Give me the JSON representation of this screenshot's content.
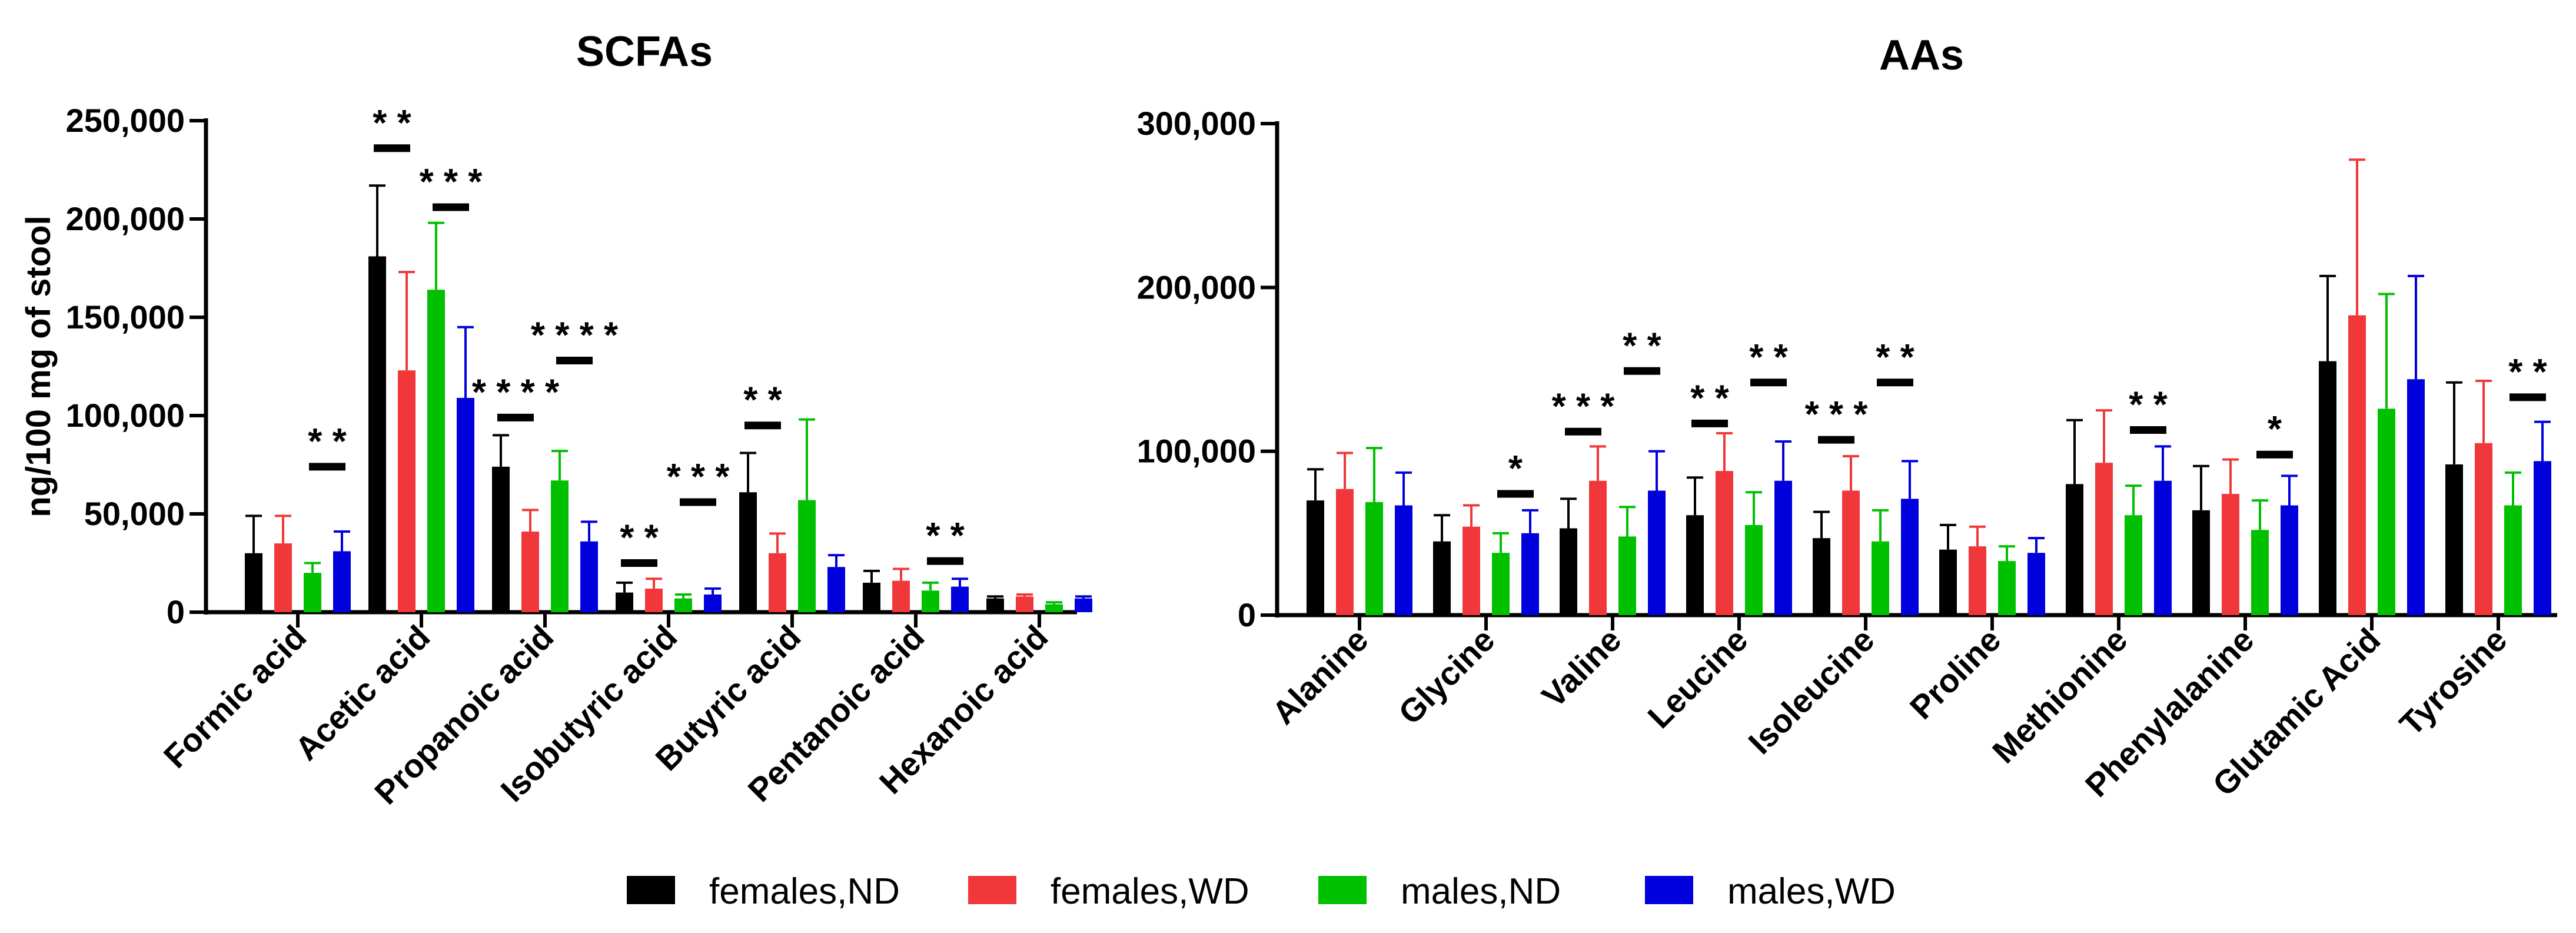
{
  "legend": {
    "entries": [
      {
        "label": "females,ND",
        "color": "#000000"
      },
      {
        "label": "females,WD",
        "color": "#f0383a"
      },
      {
        "label": "males,ND",
        "color": "#00c000"
      },
      {
        "label": "males,WD",
        "color": "#0000dd"
      }
    ]
  },
  "chart_data": [
    {
      "type": "bar",
      "title": "SCFAs",
      "ylabel": "ng/100 mg of stool",
      "xlabel": "",
      "ylim": [
        0,
        250000
      ],
      "yticks": [
        0,
        50000,
        100000,
        150000,
        200000,
        250000
      ],
      "ytick_labels": [
        "0",
        "50,000",
        "100,000",
        "150,000",
        "200,000",
        "250,000"
      ],
      "categories": [
        "Formic acid",
        "Acetic acid",
        "Propanoic acid",
        "Isobutyric acid",
        "Butyric acid",
        "Pentanoic acid",
        "Hexanoic acid"
      ],
      "series": [
        {
          "name": "females,ND",
          "color": "#000000",
          "values": [
            30000,
            181000,
            74000,
            10000,
            61000,
            15000,
            7000
          ],
          "errors": [
            19000,
            36000,
            16000,
            5000,
            20000,
            6000,
            1000
          ]
        },
        {
          "name": "females,WD",
          "color": "#f0383a",
          "values": [
            35000,
            123000,
            41000,
            12000,
            30000,
            16000,
            8000
          ],
          "errors": [
            14000,
            50000,
            11000,
            5000,
            10000,
            6000,
            1000
          ]
        },
        {
          "name": "males,ND",
          "color": "#00c000",
          "values": [
            20000,
            164000,
            67000,
            7000,
            57000,
            11000,
            4000
          ],
          "errors": [
            5000,
            34000,
            15000,
            2000,
            41000,
            4000,
            1000
          ]
        },
        {
          "name": "males,WD",
          "color": "#0000dd",
          "values": [
            31000,
            109000,
            36000,
            9000,
            23000,
            13000,
            7000
          ],
          "errors": [
            10000,
            36000,
            10000,
            3000,
            6000,
            4000,
            1000
          ]
        }
      ],
      "significance": [
        {
          "category": "Formic acid",
          "pair": [
            2,
            3
          ],
          "label": "* *",
          "value": 74000
        },
        {
          "category": "Acetic acid",
          "pair": [
            0,
            1
          ],
          "label": "* *",
          "value": 236000
        },
        {
          "category": "Acetic acid",
          "pair": [
            2,
            3
          ],
          "label": "* * *",
          "value": 206000
        },
        {
          "category": "Propanoic acid",
          "pair": [
            0,
            1
          ],
          "label": "* * * *",
          "value": 99000
        },
        {
          "category": "Propanoic acid",
          "pair": [
            2,
            3
          ],
          "label": "* * * *",
          "value": 128000
        },
        {
          "category": "Isobutyric acid",
          "pair": [
            0,
            1
          ],
          "label": "* *",
          "value": 25000
        },
        {
          "category": "Isobutyric acid",
          "pair": [
            2,
            3
          ],
          "label": "* * *",
          "value": 56000
        },
        {
          "category": "Butyric acid",
          "pair": [
            0,
            1
          ],
          "label": "* *",
          "value": 95000
        },
        {
          "category": "Pentanoic acid",
          "pair": [
            2,
            3
          ],
          "label": "* *",
          "value": 26000
        }
      ]
    },
    {
      "type": "bar",
      "title": "AAs",
      "ylabel": "",
      "xlabel": "",
      "ylim": [
        0,
        300000
      ],
      "yticks": [
        0,
        100000,
        200000,
        300000
      ],
      "ytick_labels": [
        "0",
        "100,000",
        "200,000",
        "300,000"
      ],
      "categories": [
        "Alanine",
        "Glycine",
        "Valine",
        "Leucine",
        "Isoleucine",
        "Proline",
        "Methionine",
        "Phenylalanine",
        "Glutamic Acid",
        "Tyrosine"
      ],
      "series": [
        {
          "name": "females,ND",
          "color": "#000000",
          "values": [
            70000,
            45000,
            53000,
            61000,
            47000,
            40000,
            80000,
            64000,
            155000,
            92000
          ],
          "errors": [
            19000,
            16000,
            18000,
            23000,
            16000,
            15000,
            39000,
            27000,
            52000,
            50000
          ]
        },
        {
          "name": "females,WD",
          "color": "#f0383a",
          "values": [
            77000,
            54000,
            82000,
            88000,
            76000,
            42000,
            93000,
            74000,
            183000,
            105000
          ],
          "errors": [
            22000,
            13000,
            21000,
            23000,
            21000,
            12000,
            32000,
            21000,
            95000,
            38000
          ]
        },
        {
          "name": "males,ND",
          "color": "#00c000",
          "values": [
            69000,
            38000,
            48000,
            55000,
            45000,
            33000,
            61000,
            52000,
            126000,
            67000
          ],
          "errors": [
            33000,
            12000,
            18000,
            20000,
            19000,
            9000,
            18000,
            18000,
            70000,
            20000
          ]
        },
        {
          "name": "males,WD",
          "color": "#0000dd",
          "values": [
            67000,
            50000,
            76000,
            82000,
            71000,
            38000,
            82000,
            67000,
            144000,
            94000
          ],
          "errors": [
            20000,
            14000,
            24000,
            24000,
            23000,
            9000,
            21000,
            18000,
            63000,
            24000
          ]
        }
      ],
      "significance": [
        {
          "category": "Glycine",
          "pair": [
            2,
            3
          ],
          "label": "*",
          "value": 74000
        },
        {
          "category": "Valine",
          "pair": [
            0,
            1
          ],
          "label": "* * *",
          "value": 112000
        },
        {
          "category": "Valine",
          "pair": [
            2,
            3
          ],
          "label": "* *",
          "value": 149000
        },
        {
          "category": "Leucine",
          "pair": [
            0,
            1
          ],
          "label": "* *",
          "value": 117000
        },
        {
          "category": "Leucine",
          "pair": [
            2,
            3
          ],
          "label": "* *",
          "value": 142000
        },
        {
          "category": "Isoleucine",
          "pair": [
            0,
            1
          ],
          "label": "* * *",
          "value": 107000
        },
        {
          "category": "Isoleucine",
          "pair": [
            2,
            3
          ],
          "label": "* *",
          "value": 142000
        },
        {
          "category": "Methionine",
          "pair": [
            2,
            3
          ],
          "label": "* *",
          "value": 113000
        },
        {
          "category": "Phenylalanine",
          "pair": [
            2,
            3
          ],
          "label": "*",
          "value": 98000
        },
        {
          "category": "Tyrosine",
          "pair": [
            2,
            3
          ],
          "label": "* *",
          "value": 133000
        }
      ]
    }
  ]
}
